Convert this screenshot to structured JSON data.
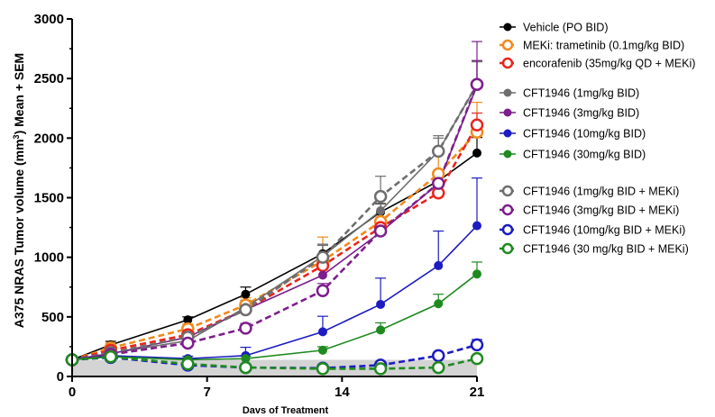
{
  "chart_data": {
    "type": "line",
    "xlabel": "Davs of Treatment",
    "ylabel_parts": [
      "A375 NRAS Tumor volume (mm",
      "3",
      ") Mean + SEM"
    ],
    "xlim": [
      0,
      21
    ],
    "ylim": [
      0,
      3000
    ],
    "xticks": [
      0,
      7,
      14,
      21
    ],
    "yticks": [
      0,
      500,
      1000,
      1500,
      2000,
      2500,
      3000
    ],
    "shaded_band": {
      "y_from": 0,
      "y_to": 140,
      "color": "#d4d4d4"
    },
    "x": [
      0,
      2,
      6,
      9,
      13,
      16,
      19,
      21
    ],
    "series": [
      {
        "name": "Vehicle (PO BID)",
        "color": "#000000",
        "marker": "filled",
        "dash": false,
        "values": [
          140,
          265,
          475,
          690,
          1030,
          1380,
          1640,
          1875
        ],
        "errors": [
          15,
          30,
          25,
          60,
          70,
          70,
          60,
          130
        ]
      },
      {
        "name": "MEKi: trametinib (0.1mg/kg BID)",
        "color": "#f08a1c",
        "marker": "open",
        "dash": true,
        "values": [
          140,
          240,
          400,
          600,
          970,
          1300,
          1700,
          2050
        ],
        "errors": [
          15,
          40,
          40,
          60,
          200,
          200,
          200,
          250
        ]
      },
      {
        "name": "encorafenib (35mg/kg QD + MEKi)",
        "color": "#e8251e",
        "marker": "open",
        "dash": true,
        "values": [
          140,
          220,
          350,
          560,
          930,
          1250,
          1540,
          2110
        ],
        "errors": [
          15,
          20,
          30,
          40,
          50,
          60,
          80,
          100
        ]
      },
      {
        "name": "CFT1946 (1mg/kg BID)",
        "color": "#6e6e6e",
        "marker": "filled",
        "dash": false,
        "values": [
          140,
          195,
          300,
          580,
          1010,
          1390,
          1890,
          2450
        ],
        "errors": [
          15,
          20,
          30,
          60,
          90,
          130,
          110,
          190
        ]
      },
      {
        "name": "CFT1946 (3mg/kg BID)",
        "color": "#7d1f8c",
        "marker": "filled",
        "dash": false,
        "values": [
          140,
          190,
          330,
          560,
          850,
          1210,
          1620,
          2440
        ],
        "errors": [
          15,
          20,
          25,
          40,
          80,
          80,
          90,
          370
        ]
      },
      {
        "name": "CFT1946 (10mg/kg BID)",
        "color": "#1c1cc0",
        "marker": "filled",
        "dash": false,
        "values": [
          140,
          175,
          150,
          175,
          375,
          605,
          930,
          1265
        ],
        "errors": [
          15,
          20,
          20,
          70,
          130,
          220,
          290,
          400
        ]
      },
      {
        "name": "CFT1946 (30mg/kg BID)",
        "color": "#1f8a1f",
        "marker": "filled",
        "dash": false,
        "values": [
          140,
          165,
          140,
          150,
          220,
          390,
          610,
          860
        ],
        "errors": [
          15,
          15,
          15,
          20,
          30,
          60,
          80,
          100
        ]
      },
      {
        "name": "CFT1946 (1mg/kg BID + MEKi)",
        "color": "#6e6e6e",
        "marker": "open",
        "dash": true,
        "values": [
          140,
          200,
          330,
          560,
          1000,
          1510,
          1890,
          2450
        ],
        "errors": [
          15,
          20,
          30,
          50,
          110,
          170,
          130,
          200
        ]
      },
      {
        "name": "CFT1946 (3mg/kg BID + MEKi)",
        "color": "#7d1f8c",
        "marker": "open",
        "dash": true,
        "values": [
          140,
          185,
          280,
          405,
          720,
          1220,
          1620,
          2450
        ],
        "errors": [
          15,
          20,
          30,
          40,
          60,
          80,
          100,
          200
        ]
      },
      {
        "name": "CFT1946 (10mg/kg BID + MEKi)",
        "color": "#1c1cc0",
        "marker": "open",
        "dash": true,
        "values": [
          140,
          160,
          95,
          75,
          70,
          95,
          175,
          265
        ],
        "errors": [
          15,
          15,
          10,
          10,
          10,
          15,
          25,
          45
        ]
      },
      {
        "name": "CFT1946 (30 mg/kg BID + MEKi)",
        "color": "#1f8a1f",
        "marker": "open",
        "dash": true,
        "values": [
          140,
          165,
          105,
          75,
          65,
          65,
          75,
          150
        ],
        "errors": [
          15,
          10,
          10,
          10,
          10,
          10,
          15,
          25
        ]
      }
    ],
    "legend_groups": [
      [
        0,
        1,
        2
      ],
      [
        3,
        4,
        5,
        6
      ],
      [
        7,
        8,
        9,
        10
      ]
    ],
    "legend_placement": "right",
    "grid": false
  }
}
